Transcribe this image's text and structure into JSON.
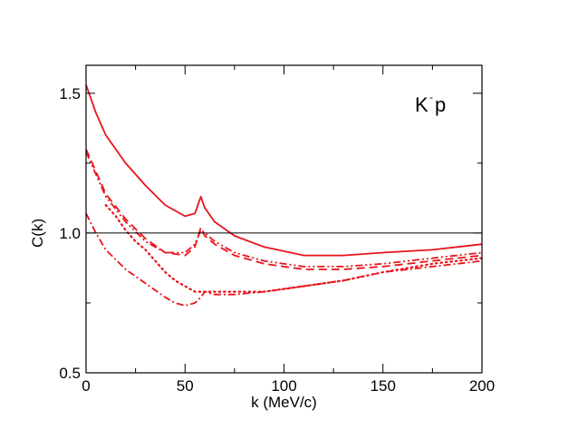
{
  "chart_data": {
    "type": "line",
    "title": "",
    "xlabel": "k (MeV/c)",
    "ylabel": "C(k)",
    "xlim": [
      0,
      200
    ],
    "ylim": [
      0.5,
      1.6
    ],
    "xticks": [
      0,
      50,
      100,
      150,
      200
    ],
    "xtick_labels": [
      "0",
      "50",
      "100",
      "150",
      "200"
    ],
    "yticks": [
      0.5,
      1.0,
      1.5
    ],
    "ytick_labels": [
      "0.5",
      "1.0",
      "1.5"
    ],
    "reference_line": 1.0,
    "annotation": {
      "base": "K",
      "superscript": "-",
      "suffix": "p",
      "position": "top-right"
    },
    "grid": false,
    "legend": false,
    "series": [
      {
        "name": "solid",
        "style": "solid",
        "color": "#e8141c",
        "x": [
          0,
          5,
          10,
          20,
          30,
          40,
          50,
          55,
          58,
          60,
          65,
          75,
          90,
          110,
          130,
          150,
          175,
          200
        ],
        "y": [
          1.53,
          1.43,
          1.35,
          1.25,
          1.17,
          1.1,
          1.06,
          1.07,
          1.13,
          1.09,
          1.04,
          0.99,
          0.95,
          0.92,
          0.92,
          0.93,
          0.94,
          0.96
        ]
      },
      {
        "name": "dashed",
        "style": "dashed",
        "color": "#e8141c",
        "x": [
          0,
          5,
          10,
          20,
          30,
          40,
          50,
          55,
          58,
          60,
          65,
          75,
          90,
          110,
          130,
          150,
          175,
          200
        ],
        "y": [
          1.3,
          1.22,
          1.14,
          1.05,
          0.98,
          0.93,
          0.92,
          0.95,
          1.02,
          0.99,
          0.96,
          0.92,
          0.89,
          0.87,
          0.87,
          0.88,
          0.9,
          0.92
        ]
      },
      {
        "name": "dash-double-dot",
        "style": "dash-double-dot",
        "color": "#e8141c",
        "x": [
          0,
          5,
          10,
          20,
          30,
          40,
          50,
          55,
          58,
          60,
          65,
          75,
          90,
          110,
          130,
          150,
          175,
          200
        ],
        "y": [
          1.29,
          1.21,
          1.13,
          1.04,
          0.97,
          0.93,
          0.93,
          0.96,
          1.01,
          1.0,
          0.97,
          0.93,
          0.9,
          0.88,
          0.88,
          0.89,
          0.91,
          0.93
        ]
      },
      {
        "name": "dotted",
        "style": "dotted",
        "color": "#e8141c",
        "x": [
          10,
          15,
          20,
          25,
          30,
          35,
          40,
          45,
          50,
          55,
          60,
          70,
          90,
          110,
          130,
          150,
          175,
          200
        ],
        "y": [
          1.1,
          1.06,
          1.01,
          0.97,
          0.94,
          0.9,
          0.86,
          0.83,
          0.81,
          0.79,
          0.79,
          0.79,
          0.79,
          0.81,
          0.83,
          0.86,
          0.89,
          0.91
        ]
      },
      {
        "name": "dash-dot",
        "style": "dash-dot",
        "color": "#e8141c",
        "x": [
          0,
          5,
          10,
          20,
          30,
          40,
          45,
          50,
          55,
          58,
          60,
          65,
          75,
          90,
          110,
          130,
          150,
          175,
          200
        ],
        "y": [
          1.07,
          1.0,
          0.94,
          0.87,
          0.82,
          0.77,
          0.75,
          0.74,
          0.75,
          0.77,
          0.79,
          0.78,
          0.78,
          0.79,
          0.81,
          0.83,
          0.86,
          0.88,
          0.9
        ]
      }
    ]
  }
}
